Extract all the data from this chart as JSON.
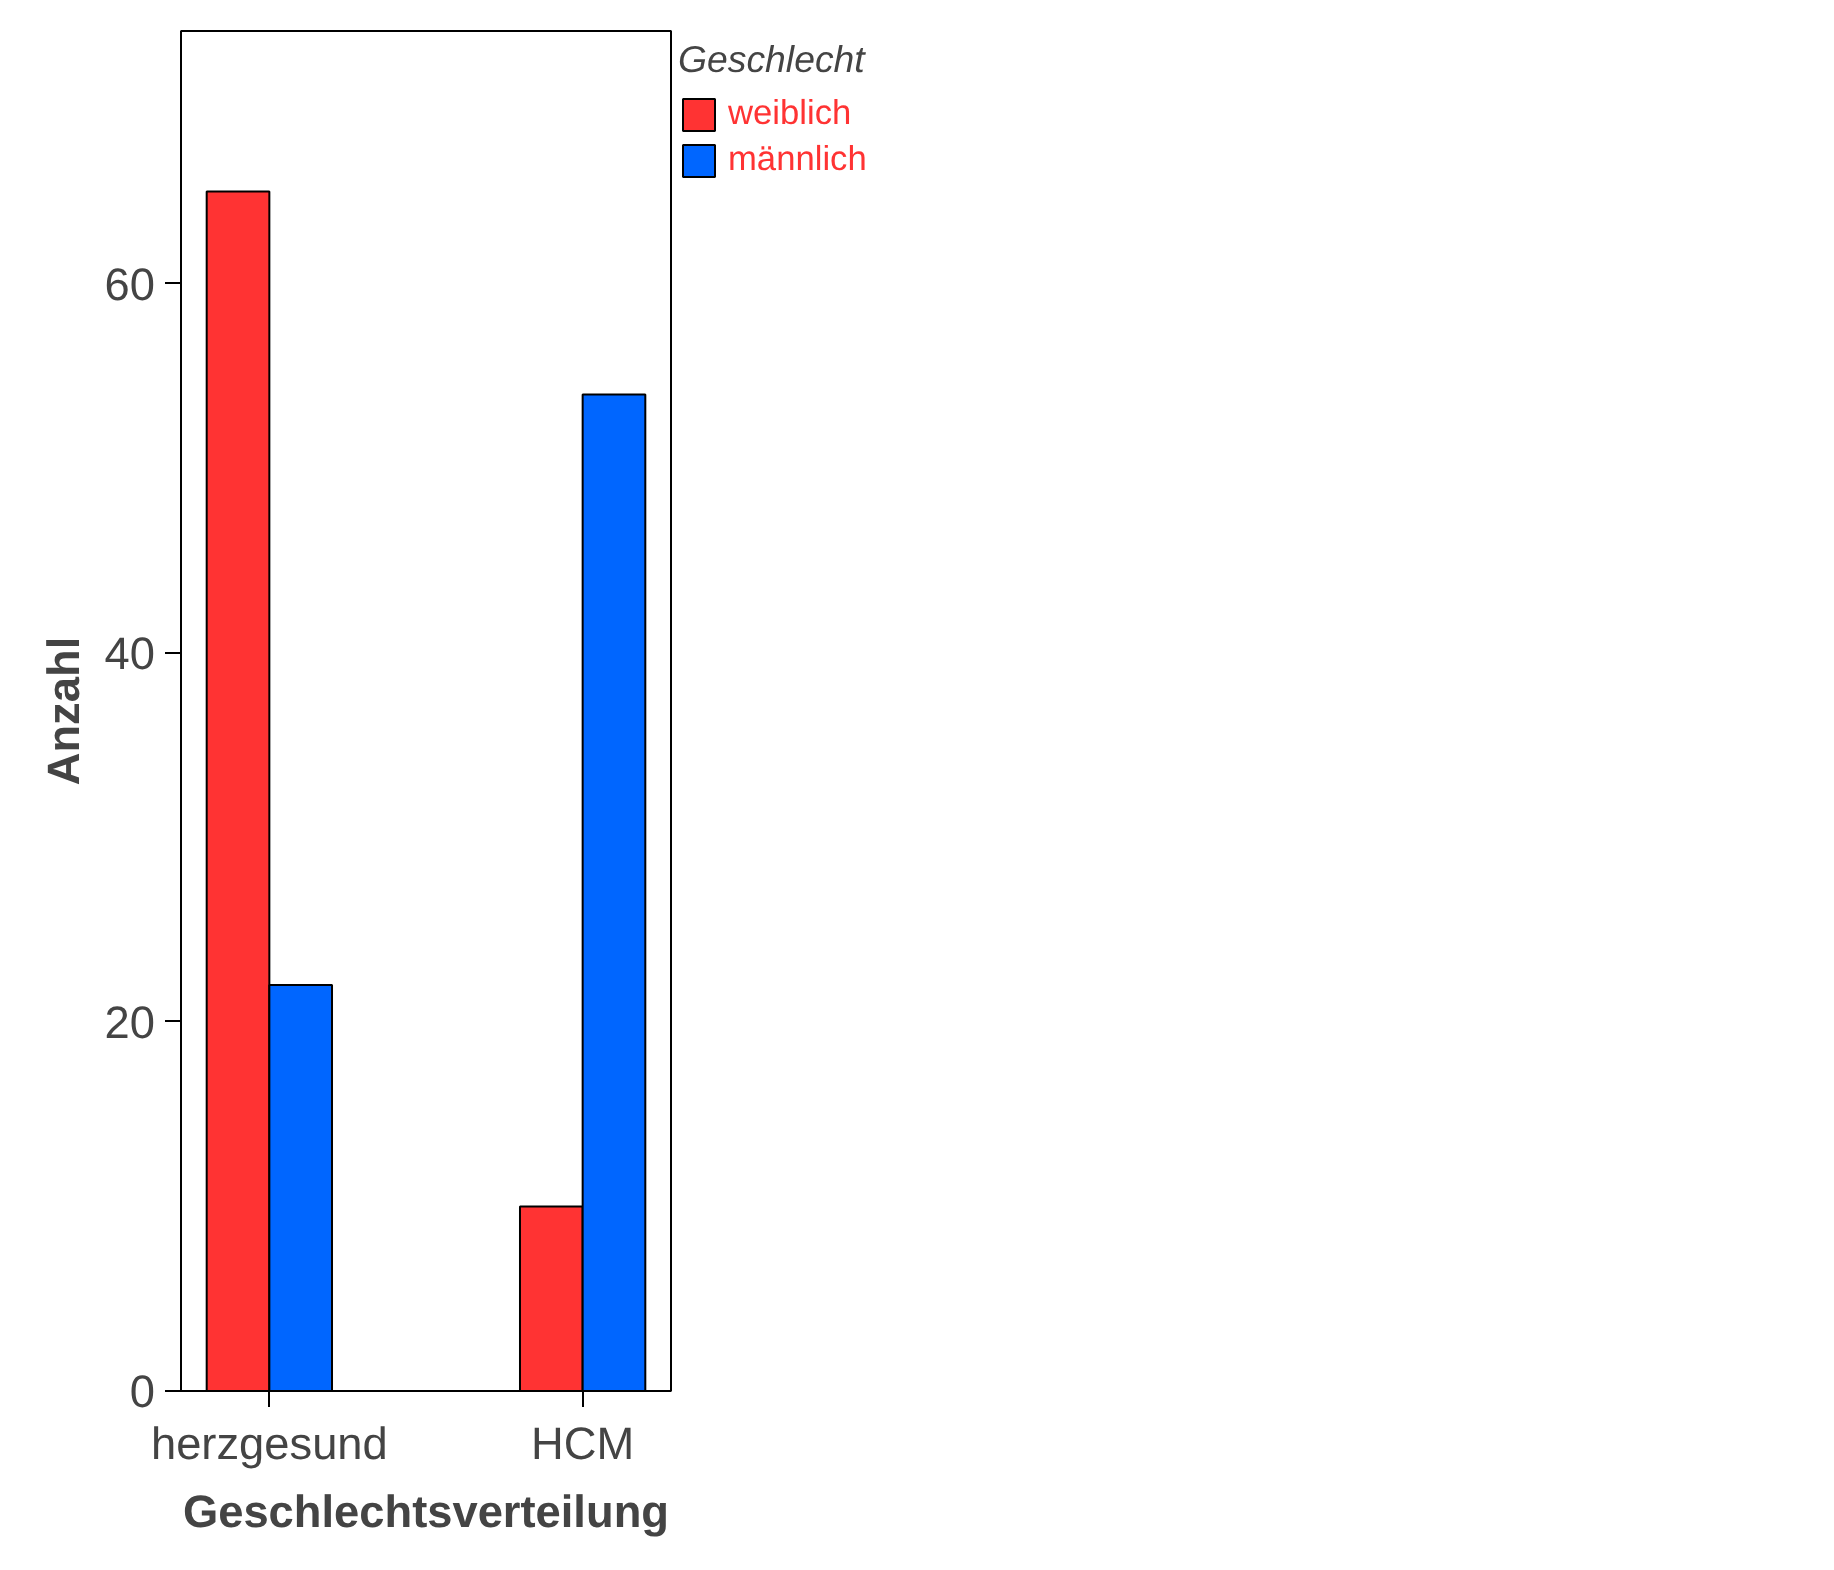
{
  "chart_data": {
    "type": "bar",
    "xlabel": "Geschlechtsverteilung",
    "ylabel": "Anzahl",
    "legend_title": "Geschlecht",
    "categories": [
      "herzgesund",
      "HCM"
    ],
    "series": [
      {
        "name": "weiblich",
        "color": "#ff3333",
        "values": [
          65,
          10
        ]
      },
      {
        "name": "männlich",
        "color": "#0066ff",
        "values": [
          22,
          54
        ]
      }
    ],
    "ylim": [
      0,
      73.7
    ],
    "yticks": [
      0,
      20,
      40,
      60
    ],
    "grid": false,
    "legend": "right"
  }
}
